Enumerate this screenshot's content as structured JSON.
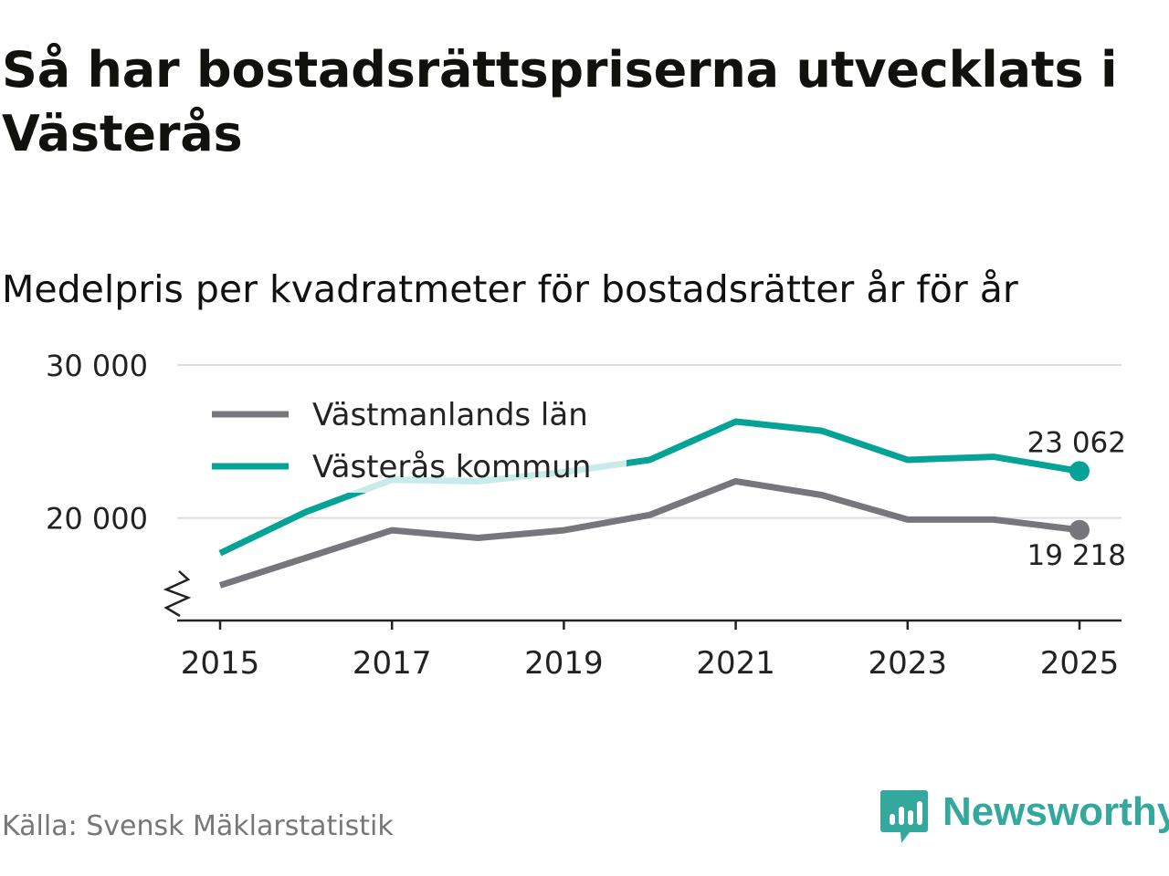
{
  "header": {
    "title": "Så har bostadsrättspriserna utvecklats i Västerås",
    "subtitle": "Medelpris per kvadratmeter för bostadsrätter år för år"
  },
  "footer": {
    "source": "Källa: Svensk Mäklarstatistik",
    "brand": "Newsworthy"
  },
  "colors": {
    "lan": "#77767d",
    "kommun": "#04a396",
    "grid": "#dddddd",
    "axis": "#222222",
    "brand": "#35a89d"
  },
  "chart_data": {
    "type": "line",
    "title": "Medelpris per kvadratmeter för bostadsrätter år för år",
    "x": [
      2015,
      2016,
      2017,
      2018,
      2019,
      2020,
      2021,
      2022,
      2023,
      2024,
      2025
    ],
    "x_ticks": [
      2015,
      2017,
      2019,
      2021,
      2023,
      2025
    ],
    "x_tick_labels": [
      "2015",
      "2017",
      "2019",
      "2021",
      "2023",
      "2025"
    ],
    "y_ticks": [
      20000,
      30000
    ],
    "y_tick_labels": [
      "20 000",
      "30 000"
    ],
    "ylim": [
      13300,
      30000
    ],
    "y_axis_break": true,
    "grid": true,
    "legend": "top-left",
    "series": [
      {
        "name": "Västmanlands län",
        "key": "lan",
        "values": [
          15600,
          17400,
          19200,
          18700,
          19200,
          20200,
          22400,
          21500,
          19900,
          19900,
          19218
        ],
        "end_label": "19 218"
      },
      {
        "name": "Västerås kommun",
        "key": "kommun",
        "values": [
          17700,
          20400,
          22500,
          22400,
          23000,
          23800,
          26300,
          25700,
          23800,
          24000,
          23062
        ],
        "end_label": "23 062"
      }
    ]
  }
}
